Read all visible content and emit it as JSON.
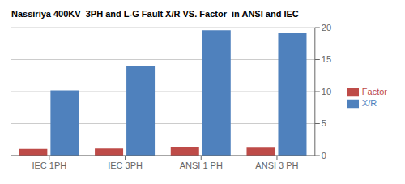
{
  "chart_data": {
    "type": "bar",
    "title": "Nassiriya 400KV  3PH and L-G Fault X/R VS. Factor  in ANSI and IEC",
    "categories": [
      "IEC 1PH",
      "IEC 3PH",
      "ANSI 1 PH",
      "ANSI 3 PH"
    ],
    "series": [
      {
        "name": "Factor",
        "color": "#BE4B48",
        "values": [
          1.05,
          1.1,
          1.4,
          1.35
        ]
      },
      {
        "name": "X/R",
        "color": "#4F81BD",
        "values": [
          10.2,
          14.0,
          19.6,
          19.1
        ]
      }
    ],
    "ylim": [
      0,
      20
    ],
    "yticks": [
      0,
      5,
      10,
      15,
      20
    ],
    "grid": true,
    "legend": "right"
  }
}
